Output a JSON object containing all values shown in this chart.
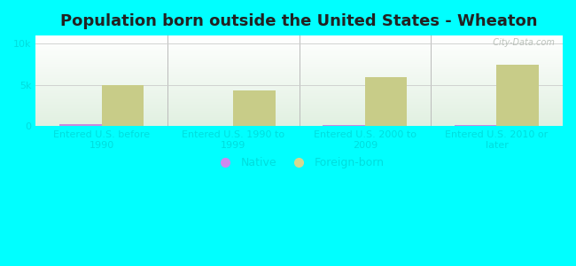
{
  "title": "Population born outside the United States - Wheaton",
  "categories": [
    "Entered U.S. before\n1990",
    "Entered U.S. 1990 to\n1999",
    "Entered U.S. 2000 to\n2009",
    "Entered U.S. 2010 or\nlater"
  ],
  "native_values": [
    200,
    80,
    100,
    90
  ],
  "foreign_values": [
    5000,
    4300,
    6000,
    7500
  ],
  "native_color": "#cc88dd",
  "foreign_color": "#c8cc88",
  "background_outer": "#00ffff",
  "yticks": [
    0,
    5000,
    10000
  ],
  "ytick_labels": [
    "0",
    "5k",
    "10k"
  ],
  "ymax": 11000,
  "bar_width": 0.32,
  "legend_native_color": "#cc88ee",
  "legend_foreign_color": "#d4d890",
  "grid_color": "#cccccc",
  "title_fontsize": 13,
  "tick_fontsize": 8,
  "legend_fontsize": 9,
  "axis_label_color": "#00dddd",
  "watermark": "  City-Data.com"
}
